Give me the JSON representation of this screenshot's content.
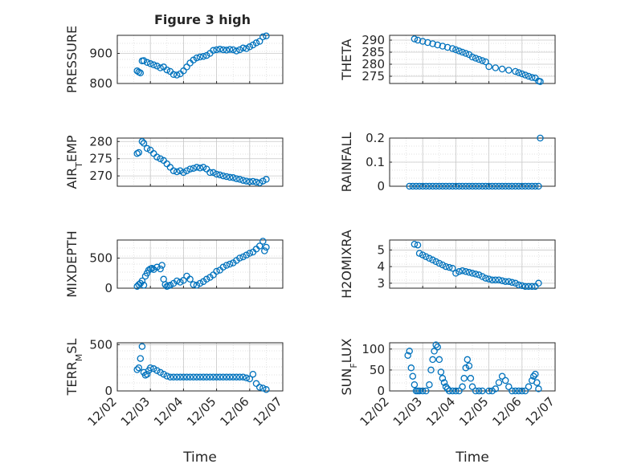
{
  "figure_title": "Figure 3 high",
  "colors": {
    "marker": "#0072BD",
    "axis": "#262626",
    "grid": "#d9d9d9"
  },
  "x_tick_labels": [
    "12/02",
    "12/03",
    "12/04",
    "12/05",
    "12/06",
    "12/07"
  ],
  "x_axis_label": "Time",
  "chart_data": [
    {
      "id": "pressure",
      "type": "scatter",
      "ylabel": "PRESSURE",
      "title": "Figure 3 high",
      "ylim": [
        800,
        960
      ],
      "yticks": [
        800,
        900
      ],
      "ytick_labels": [
        "800",
        "900"
      ],
      "x_unit": "days since 12/02",
      "xlim": [
        0,
        5
      ],
      "x": [
        0.6,
        0.65,
        0.7,
        0.75,
        0.8,
        0.9,
        1.0,
        1.1,
        1.2,
        1.3,
        1.4,
        1.5,
        1.6,
        1.7,
        1.8,
        1.9,
        2.0,
        2.1,
        2.2,
        2.3,
        2.4,
        2.5,
        2.6,
        2.7,
        2.8,
        2.9,
        3.0,
        3.1,
        3.2,
        3.3,
        3.4,
        3.5,
        3.6,
        3.7,
        3.8,
        3.9,
        4.0,
        4.1,
        4.2,
        4.3,
        4.4,
        4.5
      ],
      "y": [
        842,
        838,
        835,
        875,
        876,
        870,
        866,
        862,
        858,
        852,
        855,
        845,
        840,
        830,
        828,
        832,
        842,
        855,
        868,
        878,
        885,
        888,
        890,
        893,
        900,
        910,
        912,
        914,
        912,
        911,
        913,
        912,
        908,
        912,
        918,
        916,
        922,
        928,
        935,
        940,
        955,
        958
      ]
    },
    {
      "id": "theta",
      "type": "scatter",
      "ylabel": "THETA",
      "ylim": [
        272,
        292
      ],
      "yticks": [
        275,
        280,
        285,
        290
      ],
      "ytick_labels": [
        "275",
        "280",
        "285",
        "290"
      ],
      "x_unit": "days since 12/02",
      "xlim": [
        0,
        5
      ],
      "x": [
        0.75,
        0.85,
        1.0,
        1.15,
        1.3,
        1.45,
        1.6,
        1.75,
        1.9,
        2.0,
        2.1,
        2.2,
        2.3,
        2.4,
        2.5,
        2.6,
        2.7,
        2.8,
        2.9,
        3.0,
        3.2,
        3.4,
        3.6,
        3.8,
        3.9,
        4.0,
        4.1,
        4.2,
        4.3,
        4.4,
        4.5,
        4.55
      ],
      "y": [
        290.5,
        290,
        289.5,
        289,
        288.5,
        288,
        287.5,
        287,
        286.5,
        286,
        285.5,
        285,
        284.5,
        284,
        283,
        282.5,
        282,
        281.5,
        281,
        279,
        278.5,
        278,
        277.5,
        277,
        276.5,
        276,
        275.5,
        275,
        274.5,
        274.3,
        273,
        272.8
      ]
    },
    {
      "id": "air_temp",
      "type": "scatter",
      "ylabel": "AIR_TEMP",
      "ylim": [
        267,
        281
      ],
      "yticks": [
        270,
        275,
        280
      ],
      "ytick_labels": [
        "270",
        "275",
        "280"
      ],
      "x_unit": "days since 12/02",
      "xlim": [
        0,
        5
      ],
      "x": [
        0.6,
        0.65,
        0.75,
        0.8,
        0.9,
        1.0,
        1.1,
        1.2,
        1.3,
        1.4,
        1.5,
        1.6,
        1.7,
        1.8,
        1.9,
        2.0,
        2.1,
        2.2,
        2.3,
        2.4,
        2.5,
        2.6,
        2.7,
        2.8,
        2.9,
        3.0,
        3.1,
        3.2,
        3.3,
        3.4,
        3.5,
        3.6,
        3.7,
        3.8,
        3.9,
        4.0,
        4.1,
        4.2,
        4.3,
        4.4,
        4.5
      ],
      "y": [
        276.5,
        276.8,
        280,
        279.5,
        278,
        277.5,
        276.5,
        275.5,
        275,
        274.5,
        273.5,
        272.5,
        271.5,
        271.2,
        271.5,
        271,
        271.5,
        272,
        272.2,
        272.5,
        272.3,
        272.5,
        272,
        271,
        271,
        270.5,
        270.3,
        270,
        269.8,
        269.6,
        269.5,
        269.2,
        269,
        268.7,
        268.5,
        268.3,
        268.4,
        268.2,
        268,
        268.5,
        269
      ]
    },
    {
      "id": "rainfall",
      "type": "scatter",
      "ylabel": "RAINFALL",
      "ylim": [
        0,
        0.2
      ],
      "yticks": [
        0,
        0.1,
        0.2
      ],
      "ytick_labels": [
        "0",
        "0.1",
        "0.2"
      ],
      "x_unit": "days since 12/02",
      "xlim": [
        0,
        5
      ],
      "x": [
        0.6,
        0.7,
        0.8,
        0.9,
        1.0,
        1.1,
        1.2,
        1.3,
        1.4,
        1.5,
        1.6,
        1.7,
        1.8,
        1.9,
        2.0,
        2.1,
        2.2,
        2.3,
        2.4,
        2.5,
        2.6,
        2.7,
        2.8,
        2.9,
        3.0,
        3.1,
        3.2,
        3.3,
        3.4,
        3.5,
        3.6,
        3.7,
        3.8,
        3.9,
        4.0,
        4.1,
        4.2,
        4.3,
        4.4,
        4.5,
        4.55
      ],
      "y": [
        0,
        0,
        0,
        0,
        0,
        0,
        0,
        0,
        0,
        0,
        0,
        0,
        0,
        0,
        0,
        0,
        0,
        0,
        0,
        0,
        0,
        0,
        0,
        0,
        0,
        0,
        0,
        0,
        0,
        0,
        0,
        0,
        0,
        0,
        0,
        0,
        0,
        0,
        0,
        0,
        0.2
      ]
    },
    {
      "id": "mixdepth",
      "type": "scatter",
      "ylabel": "MIXDEPTH",
      "ylim": [
        0,
        800
      ],
      "yticks": [
        0,
        500
      ],
      "ytick_labels": [
        "0",
        "500"
      ],
      "x_unit": "days since 12/02",
      "xlim": [
        0,
        5
      ],
      "x": [
        0.6,
        0.65,
        0.7,
        0.75,
        0.8,
        0.85,
        0.9,
        0.95,
        1.0,
        1.05,
        1.1,
        1.2,
        1.3,
        1.35,
        1.4,
        1.45,
        1.5,
        1.55,
        1.6,
        1.7,
        1.8,
        1.9,
        2.0,
        2.1,
        2.2,
        2.3,
        2.4,
        2.5,
        2.6,
        2.7,
        2.8,
        2.9,
        3.0,
        3.1,
        3.2,
        3.3,
        3.4,
        3.5,
        3.6,
        3.7,
        3.8,
        3.9,
        4.0,
        4.1,
        4.2,
        4.3,
        4.4,
        4.45,
        4.5
      ],
      "y": [
        30,
        60,
        80,
        120,
        50,
        200,
        250,
        300,
        320,
        330,
        310,
        350,
        320,
        380,
        150,
        60,
        30,
        40,
        50,
        80,
        120,
        100,
        130,
        200,
        150,
        60,
        50,
        80,
        110,
        150,
        180,
        220,
        280,
        300,
        350,
        380,
        400,
        420,
        460,
        500,
        520,
        550,
        580,
        600,
        650,
        700,
        780,
        620,
        680
      ]
    },
    {
      "id": "h2omixra",
      "type": "scatter",
      "ylabel": "H2OMIXRA",
      "ylim": [
        2.7,
        5.6
      ],
      "yticks": [
        3,
        4,
        5
      ],
      "ytick_labels": [
        "3",
        "4",
        "5"
      ],
      "x_unit": "days since 12/02",
      "xlim": [
        0,
        5
      ],
      "x": [
        0.75,
        0.85,
        0.9,
        1.0,
        1.1,
        1.2,
        1.3,
        1.4,
        1.5,
        1.6,
        1.7,
        1.8,
        1.9,
        2.0,
        2.1,
        2.2,
        2.3,
        2.4,
        2.5,
        2.6,
        2.7,
        2.8,
        2.9,
        3.0,
        3.1,
        3.2,
        3.3,
        3.4,
        3.5,
        3.6,
        3.7,
        3.8,
        3.9,
        4.0,
        4.1,
        4.2,
        4.3,
        4.4,
        4.5
      ],
      "y": [
        5.35,
        5.3,
        4.8,
        4.7,
        4.6,
        4.5,
        4.4,
        4.3,
        4.2,
        4.1,
        4.0,
        3.95,
        3.9,
        3.6,
        3.7,
        3.75,
        3.7,
        3.65,
        3.6,
        3.55,
        3.5,
        3.4,
        3.3,
        3.25,
        3.2,
        3.2,
        3.2,
        3.15,
        3.1,
        3.1,
        3.05,
        3.0,
        2.9,
        2.85,
        2.8,
        2.8,
        2.8,
        2.8,
        3.0
      ]
    },
    {
      "id": "terr_msl",
      "type": "scatter",
      "ylabel": "TERR_MSL",
      "ylim": [
        0,
        520
      ],
      "yticks": [
        0,
        500
      ],
      "ytick_labels": [
        "0",
        "500"
      ],
      "x_unit": "days since 12/02",
      "xlim": [
        0,
        5
      ],
      "x": [
        0.6,
        0.65,
        0.7,
        0.75,
        0.8,
        0.85,
        0.9,
        0.95,
        1.0,
        1.1,
        1.2,
        1.3,
        1.4,
        1.5,
        1.6,
        1.7,
        1.8,
        1.9,
        2.0,
        2.1,
        2.2,
        2.3,
        2.4,
        2.5,
        2.6,
        2.7,
        2.8,
        2.9,
        3.0,
        3.1,
        3.2,
        3.3,
        3.4,
        3.5,
        3.6,
        3.7,
        3.8,
        3.9,
        4.0,
        4.1,
        4.2,
        4.3,
        4.4,
        4.5
      ],
      "y": [
        230,
        250,
        350,
        480,
        200,
        170,
        180,
        220,
        250,
        240,
        220,
        200,
        180,
        160,
        150,
        150,
        150,
        150,
        150,
        150,
        150,
        150,
        150,
        150,
        150,
        150,
        150,
        150,
        150,
        150,
        150,
        150,
        150,
        150,
        150,
        150,
        150,
        140,
        130,
        180,
        80,
        40,
        30,
        15
      ]
    },
    {
      "id": "sun_flux",
      "type": "scatter",
      "ylabel": "SUN_FLUX",
      "ylim": [
        0,
        115
      ],
      "yticks": [
        0,
        50,
        100
      ],
      "ytick_labels": [
        "0",
        "50",
        "100"
      ],
      "x_unit": "days since 12/02",
      "xlim": [
        0,
        5
      ],
      "x": [
        0.55,
        0.6,
        0.65,
        0.7,
        0.75,
        0.8,
        0.85,
        0.9,
        1.0,
        1.1,
        1.2,
        1.25,
        1.3,
        1.35,
        1.4,
        1.45,
        1.5,
        1.55,
        1.6,
        1.65,
        1.7,
        1.75,
        1.8,
        1.9,
        2.0,
        2.1,
        2.2,
        2.25,
        2.3,
        2.35,
        2.4,
        2.45,
        2.5,
        2.6,
        2.7,
        2.8,
        3.0,
        3.1,
        3.2,
        3.3,
        3.4,
        3.5,
        3.6,
        3.7,
        3.8,
        3.9,
        4.0,
        4.1,
        4.2,
        4.3,
        4.35,
        4.4,
        4.45,
        4.5
      ],
      "y": [
        85,
        95,
        55,
        35,
        15,
        0,
        0,
        0,
        0,
        0,
        15,
        50,
        75,
        95,
        110,
        105,
        75,
        45,
        30,
        20,
        10,
        5,
        0,
        0,
        0,
        0,
        10,
        30,
        55,
        75,
        60,
        30,
        10,
        0,
        0,
        0,
        0,
        0,
        5,
        20,
        35,
        25,
        10,
        0,
        0,
        0,
        0,
        0,
        10,
        25,
        35,
        40,
        20,
        5
      ]
    }
  ]
}
